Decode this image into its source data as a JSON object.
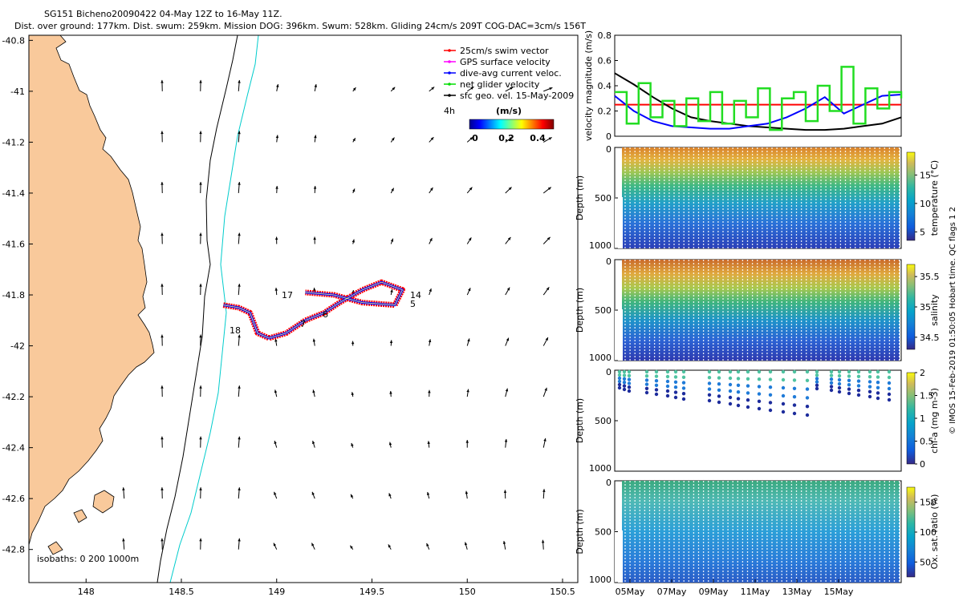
{
  "header": {
    "line1": "SG151 Bicheno20090422 04-May 12Z to 16-May 11Z.",
    "line2": "Dist. over ground: 177km. Dist. swum: 259km. Mission DOG: 396km. Swum: 528km. Gliding 24cm/s 209T COG-DAC=3cm/s 156T"
  },
  "map": {
    "legend": [
      {
        "label": "25cm/s swim vector",
        "color": "#ff0000"
      },
      {
        "label": "GPS surface velocity",
        "color": "#ff00ff"
      },
      {
        "label": "dive-avg current veloc.",
        "color": "#0000ff"
      },
      {
        "label": "net glider velocity",
        "color": "#00dd00"
      },
      {
        "label": "sfc geo. vel. 15-May-2009",
        "color": "#000000"
      }
    ],
    "interval_label": "4h",
    "colorbar_unit": "(m/s)",
    "colorbar_ticks": [
      "0",
      "0.2",
      "0.4"
    ],
    "isobath_label": "isobaths: 0   200   1000m",
    "land_color": "#f9c99b",
    "isobath_200_color": "#000000",
    "isobath_1000_color": "#00cccc",
    "track_labels": [
      "17",
      "14",
      "5",
      "18",
      "7",
      "6"
    ]
  },
  "chart_data": [
    {
      "type": "vector-map",
      "xlim": [
        147.7,
        150.58
      ],
      "ylim": [
        -42.93,
        -40.78
      ],
      "x_ticks": [
        "148",
        "148.5",
        "149",
        "149.5",
        "150",
        "150.5"
      ],
      "y_ticks": [
        "-40.8",
        "-41",
        "-41.2",
        "-41.4",
        "-41.6",
        "-41.8",
        "-42",
        "-42.2",
        "-42.4",
        "-42.6",
        "-42.8"
      ],
      "glider_track": [
        [
          148.72,
          -41.84
        ],
        [
          148.8,
          -41.85
        ],
        [
          148.86,
          -41.87
        ],
        [
          148.9,
          -41.95
        ],
        [
          148.96,
          -41.97
        ],
        [
          149.05,
          -41.95
        ],
        [
          149.15,
          -41.9
        ],
        [
          149.25,
          -41.87
        ],
        [
          149.33,
          -41.83
        ],
        [
          149.45,
          -41.78
        ],
        [
          149.55,
          -41.75
        ],
        [
          149.66,
          -41.78
        ],
        [
          149.62,
          -41.84
        ],
        [
          149.45,
          -41.83
        ],
        [
          149.3,
          -41.8
        ],
        [
          149.15,
          -41.79
        ]
      ]
    },
    {
      "type": "line",
      "ylabel": "velocity magnitude (m/s)",
      "ylim": [
        0,
        0.8
      ],
      "y_ticks": [
        "0",
        "0.2",
        "0.4",
        "0.6",
        "0.8"
      ],
      "series": [
        {
          "color": "#ff0000",
          "values": [
            0.25,
            0.25
          ]
        },
        {
          "color": "#000000",
          "values": [
            0.5,
            0.41,
            0.31,
            0.22,
            0.15,
            0.12,
            0.1,
            0.08,
            0.07,
            0.06,
            0.05,
            0.05,
            0.06,
            0.08,
            0.1,
            0.15
          ]
        },
        {
          "color": "#0000ff",
          "values": [
            0.32,
            0.2,
            0.12,
            0.08,
            0.07,
            0.06,
            0.06,
            0.08,
            0.1,
            0.15,
            0.22,
            0.31,
            0.18,
            0.25,
            0.32,
            0.33
          ]
        },
        {
          "color": "#22dd22",
          "values": [
            0.35,
            0.1,
            0.42,
            0.15,
            0.28,
            0.08,
            0.3,
            0.12,
            0.35,
            0.1,
            0.28,
            0.15,
            0.38,
            0.05,
            0.3,
            0.35,
            0.12,
            0.4,
            0.2,
            0.55,
            0.1,
            0.38,
            0.22,
            0.35,
            0.3
          ]
        }
      ]
    },
    {
      "type": "heatmap",
      "ylabel": "Depth (m)",
      "clabel": "temperature (°C)",
      "ylim": [
        1000,
        0
      ],
      "y_ticks": [
        "0",
        "500",
        "1000"
      ],
      "c_ticks": [
        "5",
        "10",
        "15"
      ]
    },
    {
      "type": "heatmap",
      "ylabel": "Depth (m)",
      "clabel": "salinity",
      "ylim": [
        1000,
        0
      ],
      "y_ticks": [
        "0",
        "500",
        "1000"
      ],
      "c_ticks": [
        "34.5",
        "35",
        "35.5"
      ]
    },
    {
      "type": "heatmap",
      "ylabel": "Depth (m)",
      "clabel": "chl-a (mg m-3)",
      "ylim": [
        1000,
        0
      ],
      "y_ticks": [
        "0",
        "500",
        "1000"
      ],
      "c_ticks": [
        "0",
        "0.5",
        "1",
        "1.5",
        "2"
      ]
    },
    {
      "type": "heatmap",
      "ylabel": "Depth (m)",
      "clabel": "Ox. sat. ratio (%)",
      "ylim": [
        1000,
        0
      ],
      "y_ticks": [
        "0",
        "500",
        "1000"
      ],
      "c_ticks": [
        "50",
        "100",
        "150"
      ],
      "x_ticks": [
        "05May",
        "07May",
        "09May",
        "11May",
        "13May",
        "15May"
      ]
    }
  ],
  "side_label": "© IMOS 15-Feb-2019 01:50:05 Hobart time. QC flags 1  2"
}
